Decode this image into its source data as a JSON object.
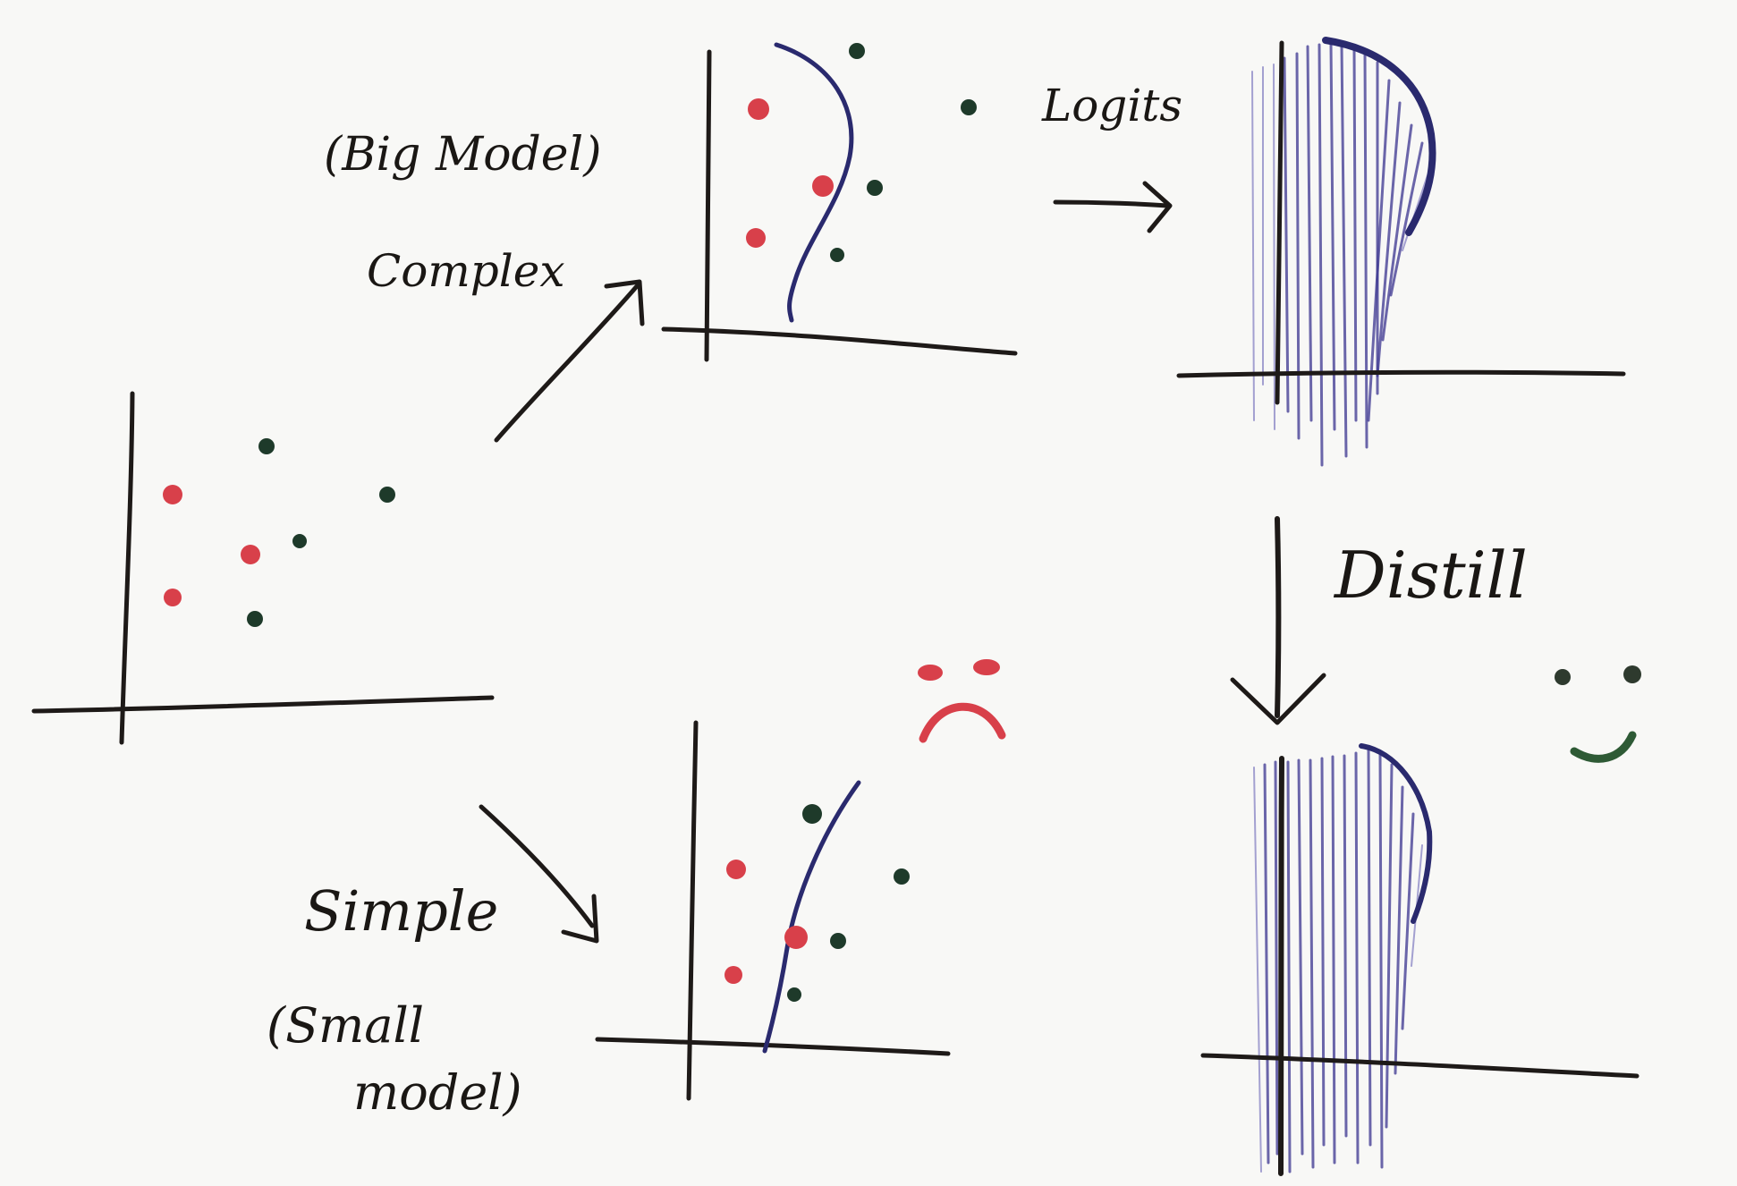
{
  "labels": {
    "big_model": "(Big Model)",
    "complex": "Complex",
    "logits": "Logits",
    "distill": "Distill",
    "simple": "Simple",
    "small_model_line1": "(Small",
    "small_model_line2": "model)"
  },
  "colors": {
    "class_a": "#d8404a",
    "class_b": "#1e3a2a",
    "boundary": "#2a2a6e",
    "logits_fill": "#3b3590",
    "sad_face": "#d8404a",
    "happy_face": "#2e5a35"
  }
}
